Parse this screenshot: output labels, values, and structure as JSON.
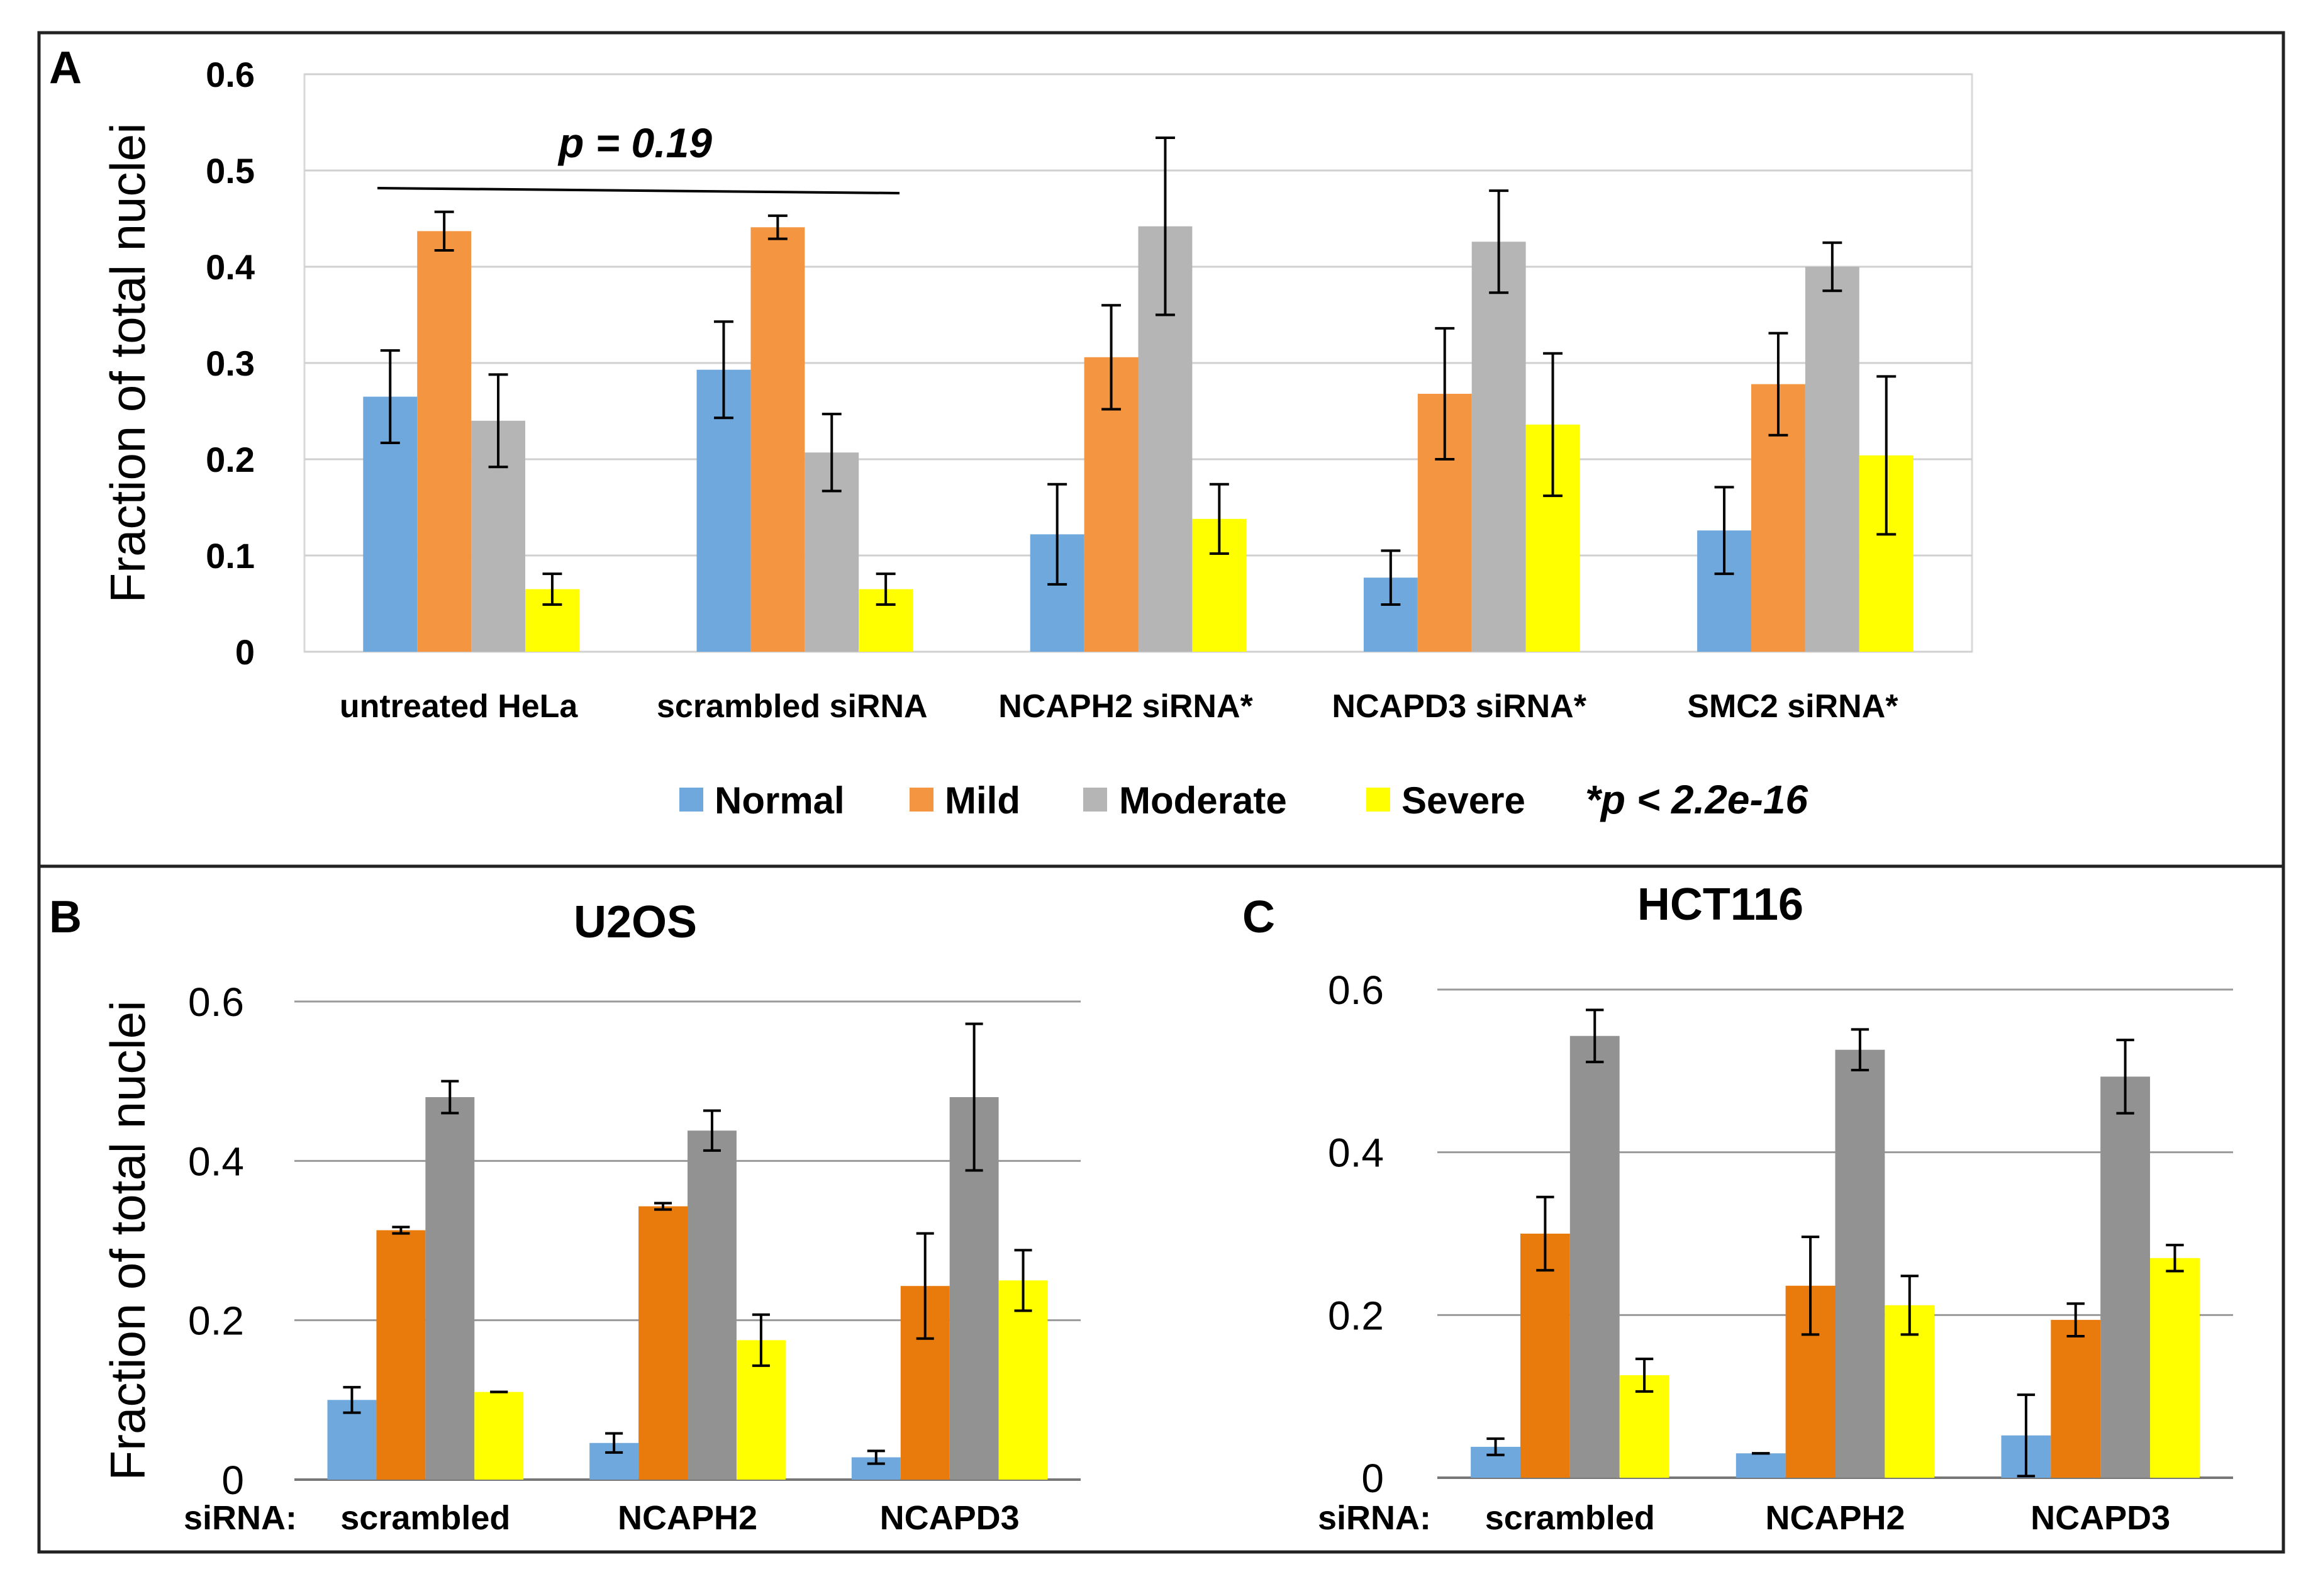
{
  "colors": {
    "panelA": {
      "Normal": "#6fa8dc",
      "Mild": "#f39541",
      "Moderate": "#b5b5b5",
      "Severe": "#ffff00"
    },
    "panelBC": {
      "Normal": "#6fa8dc",
      "Mild": "#e87b0c",
      "Moderate": "#929292",
      "Severe": "#ffff00"
    },
    "grid": "#d0d0d0",
    "gridBC": "#9a9a9a",
    "frame": "#222222"
  },
  "chart_data": [
    {
      "panel_label": "A",
      "type": "bar",
      "title": "",
      "ylabel": "Fraction of total nuclei",
      "xlabel": "",
      "ylim": [
        0,
        0.6
      ],
      "yticks": [
        "0",
        "0.1",
        "0.2",
        "0.3",
        "0.4",
        "0.5",
        "0.6"
      ],
      "categories": [
        "untreated HeLa",
        "scrambled siRNA",
        "NCAPH2 siRNA*",
        "NCAPD3 siRNA*",
        "SMC2 siRNA*"
      ],
      "series": [
        {
          "name": "Normal",
          "values": [
            0.265,
            0.293,
            0.122,
            0.077,
            0.126
          ],
          "errors": [
            0.048,
            0.05,
            0.052,
            0.028,
            0.045
          ]
        },
        {
          "name": "Mild",
          "values": [
            0.437,
            0.441,
            0.306,
            0.268,
            0.278
          ],
          "errors": [
            0.02,
            0.012,
            0.054,
            0.068,
            0.053
          ]
        },
        {
          "name": "Moderate",
          "values": [
            0.24,
            0.207,
            0.442,
            0.426,
            0.4
          ],
          "errors": [
            0.048,
            0.04,
            0.092,
            0.053,
            0.025
          ]
        },
        {
          "name": "Severe",
          "values": [
            0.065,
            0.065,
            0.138,
            0.236,
            0.204
          ],
          "errors": [
            0.016,
            0.016,
            0.036,
            0.074,
            0.082
          ]
        }
      ],
      "legend": [
        "Normal",
        "Mild",
        "Moderate",
        "Severe"
      ],
      "legend_note": "*p < 2.2e-16",
      "annotation": "p = 0.19"
    },
    {
      "panel_label": "B",
      "type": "bar",
      "title": "U2OS",
      "ylabel": "Fraction of total nuclei",
      "x_prefix": "siRNA:",
      "ylim": [
        0,
        0.6
      ],
      "yticks": [
        "0",
        "0.2",
        "0.4",
        "0.6"
      ],
      "categories": [
        "scrambled",
        "NCAPH2",
        "NCAPD3"
      ],
      "series": [
        {
          "name": "Normal",
          "values": [
            0.1,
            0.046,
            0.028
          ],
          "errors": [
            0.016,
            0.012,
            0.008
          ]
        },
        {
          "name": "Mild",
          "values": [
            0.313,
            0.343,
            0.243
          ],
          "errors": [
            0.004,
            0.004,
            0.066
          ]
        },
        {
          "name": "Moderate",
          "values": [
            0.48,
            0.438,
            0.48
          ],
          "errors": [
            0.02,
            0.025,
            0.092
          ]
        },
        {
          "name": "Severe",
          "values": [
            0.11,
            0.175,
            0.25
          ],
          "errors": [
            0.0,
            0.032,
            0.038
          ]
        }
      ]
    },
    {
      "panel_label": "C",
      "type": "bar",
      "title": "HCT116",
      "ylabel": "",
      "x_prefix": "siRNA:",
      "ylim": [
        0,
        0.6
      ],
      "yticks": [
        "0",
        "0.2",
        "0.4",
        "0.6"
      ],
      "categories": [
        "scrambled",
        "NCAPH2",
        "NCAPD3"
      ],
      "series": [
        {
          "name": "Normal",
          "values": [
            0.038,
            0.03,
            0.052
          ],
          "errors": [
            0.01,
            0.0,
            0.05
          ]
        },
        {
          "name": "Mild",
          "values": [
            0.3,
            0.236,
            0.194
          ],
          "errors": [
            0.045,
            0.06,
            0.02
          ]
        },
        {
          "name": "Moderate",
          "values": [
            0.543,
            0.526,
            0.493
          ],
          "errors": [
            0.032,
            0.025,
            0.045
          ]
        },
        {
          "name": "Severe",
          "values": [
            0.126,
            0.212,
            0.27
          ],
          "errors": [
            0.02,
            0.036,
            0.016
          ]
        }
      ]
    }
  ]
}
